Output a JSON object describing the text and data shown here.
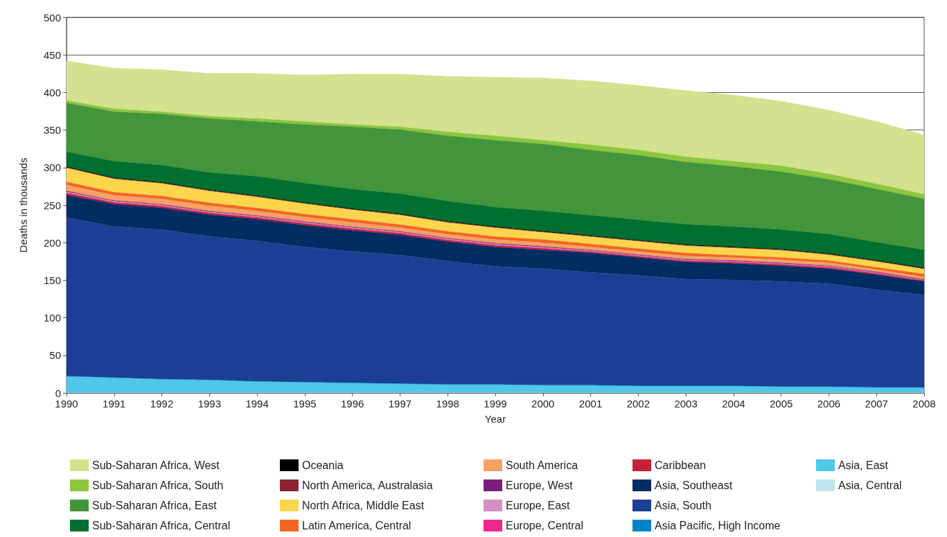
{
  "chart_data": {
    "type": "area",
    "stacked": true,
    "xlabel": "Year",
    "ylabel": "Deaths in thousands",
    "categories": [
      "1990",
      "1991",
      "1992",
      "1993",
      "1994",
      "1995",
      "1996",
      "1997",
      "1998",
      "1999",
      "2000",
      "2001",
      "2002",
      "2003",
      "2004",
      "2005",
      "2006",
      "2007",
      "2008"
    ],
    "ylim": [
      0,
      500
    ],
    "yticks": [
      0,
      50,
      100,
      150,
      200,
      250,
      300,
      350,
      400,
      450,
      500
    ],
    "grid": "y",
    "legend": "bottom",
    "series": [
      {
        "name": "Asia, Central",
        "color": "#bde4ef",
        "values": [
          0.5,
          0.5,
          0.5,
          0.5,
          0.5,
          0.5,
          0.5,
          0.5,
          0.5,
          0.5,
          0.5,
          0.5,
          0.5,
          0.5,
          0.5,
          0.5,
          0.5,
          0.5,
          0.5
        ]
      },
      {
        "name": "Asia, East",
        "color": "#4fc7e8",
        "values": [
          21.5,
          19.5,
          17.5,
          16.5,
          14.5,
          13.5,
          12.5,
          11.5,
          10.5,
          10.5,
          9.5,
          9.5,
          8.5,
          8.5,
          8.5,
          7.5,
          7.5,
          6.5,
          6.5
        ]
      },
      {
        "name": "Asia Pacific, High Income",
        "color": "#0083c6",
        "values": [
          0.3,
          0.3,
          0.3,
          0.3,
          0.3,
          0.3,
          0.3,
          0.3,
          0.3,
          0.3,
          0.3,
          0.3,
          0.3,
          0.3,
          0.3,
          0.3,
          0.3,
          0.3,
          0.3
        ]
      },
      {
        "name": "Asia, South",
        "color": "#1c3f95",
        "values": [
          211,
          201,
          199,
          191,
          187,
          180,
          175,
          171,
          164,
          157,
          155,
          150,
          147,
          142,
          141,
          140,
          137,
          130,
          123
        ]
      },
      {
        "name": "Asia, Southeast",
        "color": "#002d62",
        "values": [
          30,
          30,
          29,
          29,
          29,
          29,
          28,
          27,
          26,
          26,
          25,
          26,
          24,
          23,
          22,
          21,
          20,
          20,
          18
        ]
      },
      {
        "name": "Caribbean",
        "color": "#c8203a",
        "values": [
          2.5,
          2,
          2,
          2,
          2,
          2,
          2,
          2,
          2,
          2,
          2,
          1.5,
          1.5,
          1.5,
          1.5,
          1.5,
          1.5,
          1.5,
          1
        ]
      },
      {
        "name": "Europe, Central",
        "color": "#ec288e",
        "values": [
          0.5,
          0.5,
          0.5,
          0.5,
          0.5,
          0.5,
          0.5,
          0.5,
          0.5,
          0.5,
          0.5,
          0.5,
          0.5,
          0.5,
          0.5,
          0.5,
          0.5,
          0.5,
          0.3
        ]
      },
      {
        "name": "Europe, East",
        "color": "#d68fc0",
        "values": [
          1.5,
          1.2,
          1.2,
          1.2,
          1.2,
          1.2,
          1.2,
          1.2,
          1.2,
          1.2,
          1.2,
          0.8,
          0.8,
          0.8,
          0.8,
          0.8,
          0.8,
          0.8,
          0.5
        ]
      },
      {
        "name": "Europe, West",
        "color": "#7b1e7a",
        "values": [
          1,
          1,
          1,
          1,
          1,
          1,
          1,
          1,
          1,
          1,
          1,
          1,
          1,
          1,
          1,
          1,
          1,
          1,
          1
        ]
      },
      {
        "name": "South America",
        "color": "#f7a164",
        "values": [
          8,
          7,
          7,
          7,
          6,
          6,
          6,
          5,
          5,
          5,
          5,
          4,
          4,
          4,
          4,
          4,
          4,
          3,
          3
        ]
      },
      {
        "name": "Latin America, Central",
        "color": "#f26522",
        "values": [
          4,
          4,
          4,
          4,
          4,
          4,
          4,
          4,
          4,
          4,
          4,
          4,
          4,
          4,
          3,
          3,
          3,
          3,
          4
        ]
      },
      {
        "name": "North Africa, Middle East",
        "color": "#fcd54d",
        "values": [
          19,
          18,
          17,
          16,
          15,
          14,
          13,
          13,
          12,
          12,
          10,
          10,
          10,
          10,
          10,
          10,
          8,
          8,
          7
        ]
      },
      {
        "name": "North America, Australasia",
        "color": "#8b2331",
        "values": [
          0.3,
          0.3,
          0.3,
          0.3,
          0.3,
          0.3,
          0.3,
          0.3,
          0.3,
          0.3,
          0.3,
          0.3,
          0.3,
          0.3,
          0.3,
          0.3,
          0.3,
          0.3,
          0.3
        ]
      },
      {
        "name": "Oceania",
        "color": "#000000",
        "values": [
          1,
          1,
          1,
          1,
          1,
          1,
          1,
          1,
          1,
          1,
          1,
          1,
          1,
          1,
          1,
          1,
          1,
          1,
          1
        ]
      },
      {
        "name": "Sub-Saharan Africa, Central",
        "color": "#006f2f",
        "values": [
          20,
          22,
          23,
          23,
          26,
          26,
          26,
          27,
          27,
          26,
          27,
          27,
          27,
          27,
          27,
          26,
          26,
          24,
          24
        ]
      },
      {
        "name": "Sub-Saharan Africa, East",
        "color": "#43953b",
        "values": [
          65,
          66,
          68,
          72,
          73,
          78,
          83,
          85,
          87,
          89,
          89,
          87,
          86,
          83,
          80,
          77,
          73,
          71,
          68
        ]
      },
      {
        "name": "Sub-Saharan Africa, South",
        "color": "#8dc63f",
        "values": [
          3,
          4,
          3,
          3,
          4,
          4,
          3,
          4,
          5,
          6,
          5,
          7,
          7,
          7,
          7,
          8,
          7,
          7,
          6
        ]
      },
      {
        "name": "Sub-Saharan Africa, West",
        "color": "#d4e18f",
        "values": [
          53,
          54,
          56,
          57,
          60,
          62,
          67,
          70,
          74,
          78,
          83,
          85,
          86,
          88,
          88,
          86,
          85,
          83,
          79
        ]
      }
    ]
  }
}
